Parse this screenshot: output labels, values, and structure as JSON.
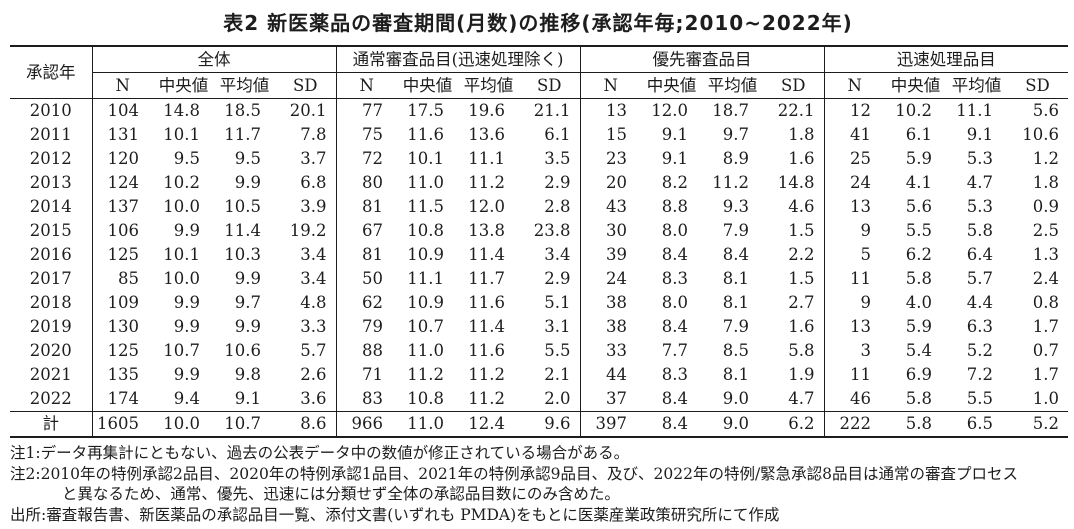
{
  "title": "表2 新医薬品の審査期間(月数)の推移(承認年毎;2010~2022年)",
  "table": {
    "year_header": "承認年",
    "groups": [
      {
        "label": "全体"
      },
      {
        "label": "通常審査品目(迅速処理除く)"
      },
      {
        "label": "優先審査品目"
      },
      {
        "label": "迅速処理品目"
      }
    ],
    "stat_headers": [
      "N",
      "中央値",
      "平均値",
      "SD"
    ],
    "rows": [
      {
        "year": "2010",
        "values": [
          "104",
          "14.8",
          "18.5",
          "20.1",
          "77",
          "17.5",
          "19.6",
          "21.1",
          "13",
          "12.0",
          "18.7",
          "22.1",
          "12",
          "10.2",
          "11.1",
          "5.6"
        ]
      },
      {
        "year": "2011",
        "values": [
          "131",
          "10.1",
          "11.7",
          "7.8",
          "75",
          "11.6",
          "13.6",
          "6.1",
          "15",
          "9.1",
          "9.7",
          "1.8",
          "41",
          "6.1",
          "9.1",
          "10.6"
        ]
      },
      {
        "year": "2012",
        "values": [
          "120",
          "9.5",
          "9.5",
          "3.7",
          "72",
          "10.1",
          "11.1",
          "3.5",
          "23",
          "9.1",
          "8.9",
          "1.6",
          "25",
          "5.9",
          "5.3",
          "1.2"
        ]
      },
      {
        "year": "2013",
        "values": [
          "124",
          "10.2",
          "9.9",
          "6.8",
          "80",
          "11.0",
          "11.2",
          "2.9",
          "20",
          "8.2",
          "11.2",
          "14.8",
          "24",
          "4.1",
          "4.7",
          "1.8"
        ]
      },
      {
        "year": "2014",
        "values": [
          "137",
          "10.0",
          "10.5",
          "3.9",
          "81",
          "11.5",
          "12.0",
          "2.8",
          "43",
          "8.8",
          "9.3",
          "4.6",
          "13",
          "5.6",
          "5.3",
          "0.9"
        ]
      },
      {
        "year": "2015",
        "values": [
          "106",
          "9.9",
          "11.4",
          "19.2",
          "67",
          "10.8",
          "13.8",
          "23.8",
          "30",
          "8.0",
          "7.9",
          "1.5",
          "9",
          "5.5",
          "5.8",
          "2.5"
        ]
      },
      {
        "year": "2016",
        "values": [
          "125",
          "10.1",
          "10.3",
          "3.4",
          "81",
          "10.9",
          "11.4",
          "3.4",
          "39",
          "8.4",
          "8.4",
          "2.2",
          "5",
          "6.2",
          "6.4",
          "1.3"
        ]
      },
      {
        "year": "2017",
        "values": [
          "85",
          "10.0",
          "9.9",
          "3.4",
          "50",
          "11.1",
          "11.7",
          "2.9",
          "24",
          "8.3",
          "8.1",
          "1.5",
          "11",
          "5.8",
          "5.7",
          "2.4"
        ]
      },
      {
        "year": "2018",
        "values": [
          "109",
          "9.9",
          "9.7",
          "4.8",
          "62",
          "10.9",
          "11.6",
          "5.1",
          "38",
          "8.0",
          "8.1",
          "2.7",
          "9",
          "4.0",
          "4.4",
          "0.8"
        ]
      },
      {
        "year": "2019",
        "values": [
          "130",
          "9.9",
          "9.9",
          "3.3",
          "79",
          "10.7",
          "11.4",
          "3.1",
          "38",
          "8.4",
          "7.9",
          "1.6",
          "13",
          "5.9",
          "6.3",
          "1.7"
        ]
      },
      {
        "year": "2020",
        "values": [
          "125",
          "10.7",
          "10.6",
          "5.7",
          "88",
          "11.0",
          "11.6",
          "5.5",
          "33",
          "7.7",
          "8.5",
          "5.8",
          "3",
          "5.4",
          "5.2",
          "0.7"
        ]
      },
      {
        "year": "2021",
        "values": [
          "135",
          "9.9",
          "9.8",
          "2.6",
          "71",
          "11.2",
          "11.2",
          "2.1",
          "44",
          "8.3",
          "8.1",
          "1.9",
          "11",
          "6.9",
          "7.2",
          "1.7"
        ]
      },
      {
        "year": "2022",
        "values": [
          "174",
          "9.4",
          "9.1",
          "3.6",
          "83",
          "10.8",
          "11.2",
          "2.0",
          "37",
          "8.4",
          "9.0",
          "4.7",
          "46",
          "5.8",
          "5.5",
          "1.0"
        ]
      }
    ],
    "total_row": {
      "year": "計",
      "values": [
        "1605",
        "10.0",
        "10.7",
        "8.6",
        "966",
        "11.0",
        "12.4",
        "9.6",
        "397",
        "8.4",
        "9.0",
        "6.2",
        "222",
        "5.8",
        "6.5",
        "5.2"
      ]
    }
  },
  "notes": [
    {
      "text": "注1:データ再集計にともない、過去の公表データ中の数値が修正されている場合がある。",
      "indent": false
    },
    {
      "text": "注2:2010年の特例承認2品目、2020年の特例承認1品目、2021年の特例承認9品目、及び、2022年の特例/緊急承認8品目は通常の審査プロセス",
      "indent": false
    },
    {
      "text": "と異なるため、通常、優先、迅速には分類せず全体の承認品目数にのみ含めた。",
      "indent": true
    },
    {
      "text": "出所:審査報告書、新医薬品の承認品目一覧、添付文書(いずれも PMDA)をもとに医薬産業政策研究所にて作成",
      "indent": false
    }
  ]
}
